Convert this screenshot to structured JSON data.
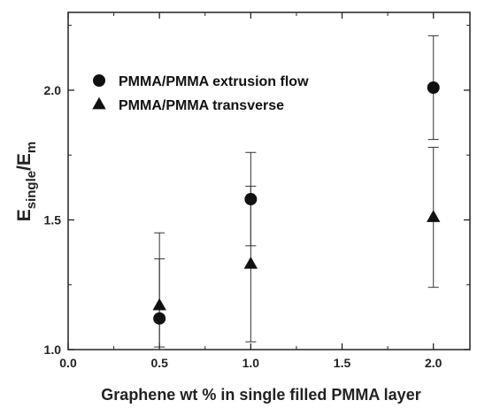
{
  "chart_data": {
    "type": "scatter",
    "xlabel": "Graphene wt % in single filled PMMA layer",
    "ylabel": {
      "main": "E",
      "sub1": "single",
      "slash": "/E",
      "sub2": "m"
    },
    "xlim": [
      0.0,
      2.2
    ],
    "ylim": [
      1.0,
      2.3
    ],
    "xticks": [
      0.0,
      0.5,
      1.0,
      1.5,
      2.0
    ],
    "xtick_labels": [
      "0.0",
      "0.5",
      "1.0",
      "1.5",
      "2.0"
    ],
    "yticks": [
      1.0,
      1.5,
      2.0
    ],
    "ytick_labels": [
      "1.0",
      "1.5",
      "2.0"
    ],
    "grid": false,
    "legend_position": "top-left",
    "series": [
      {
        "name": "PMMA/PMMA extrusion flow",
        "marker": "circle",
        "color": "#111111",
        "points": [
          {
            "x": 0.5,
            "y": 1.12,
            "err_low": 0.11,
            "err_high": 0.23
          },
          {
            "x": 1.0,
            "y": 1.58,
            "err_low": 0.18,
            "err_high": 0.05
          },
          {
            "x": 2.0,
            "y": 2.01,
            "err_low": 0.2,
            "err_high": 0.2
          }
        ]
      },
      {
        "name": "PMMA/PMMA transverse",
        "marker": "triangle",
        "color": "#111111",
        "points": [
          {
            "x": 0.5,
            "y": 1.17,
            "err_low": 0.17,
            "err_high": 0.28
          },
          {
            "x": 1.0,
            "y": 1.33,
            "err_low": 0.3,
            "err_high": 0.43
          },
          {
            "x": 2.0,
            "y": 1.51,
            "err_low": 0.27,
            "err_high": 0.27
          }
        ]
      }
    ]
  }
}
